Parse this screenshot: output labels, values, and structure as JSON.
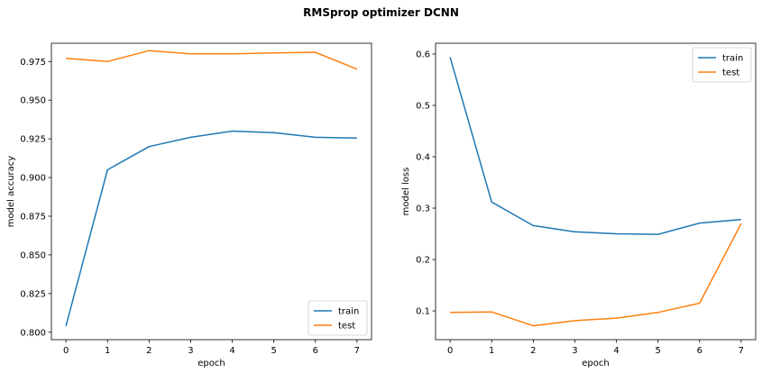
{
  "figure": {
    "title": "RMSprop optimizer DCNN"
  },
  "chart_data": [
    {
      "type": "line",
      "xlabel": "epoch",
      "ylabel": "model accuracy",
      "x": [
        0,
        1,
        2,
        3,
        4,
        5,
        6,
        7
      ],
      "xlim": [
        -0.35,
        7.35
      ],
      "ylim": [
        0.7952,
        0.9868
      ],
      "xticks": [
        "0",
        "1",
        "2",
        "3",
        "4",
        "5",
        "6",
        "7"
      ],
      "yticks": [
        "0.800",
        "0.825",
        "0.850",
        "0.875",
        "0.900",
        "0.925",
        "0.950",
        "0.975"
      ],
      "legend_position": "lower-right",
      "series": [
        {
          "name": "train",
          "color": "#1f77b4",
          "values": [
            0.804,
            0.905,
            0.92,
            0.926,
            0.93,
            0.929,
            0.926,
            0.9255
          ]
        },
        {
          "name": "test",
          "color": "#ff7f0e",
          "values": [
            0.977,
            0.975,
            0.982,
            0.98,
            0.98,
            0.9805,
            0.981,
            0.97
          ]
        }
      ]
    },
    {
      "type": "line",
      "xlabel": "epoch",
      "ylabel": "model loss",
      "x": [
        0,
        1,
        2,
        3,
        4,
        5,
        6,
        7
      ],
      "xlim": [
        -0.35,
        7.35
      ],
      "ylim": [
        0.044,
        0.621
      ],
      "xticks": [
        "0",
        "1",
        "2",
        "3",
        "4",
        "5",
        "6",
        "7"
      ],
      "yticks": [
        "0.1",
        "0.2",
        "0.3",
        "0.4",
        "0.5",
        "0.6"
      ],
      "legend_position": "upper-right",
      "series": [
        {
          "name": "train",
          "color": "#1f77b4",
          "values": [
            0.594,
            0.312,
            0.266,
            0.254,
            0.25,
            0.249,
            0.271,
            0.278
          ]
        },
        {
          "name": "test",
          "color": "#ff7f0e",
          "values": [
            0.097,
            0.098,
            0.071,
            0.081,
            0.086,
            0.097,
            0.115,
            0.27
          ]
        }
      ]
    }
  ]
}
